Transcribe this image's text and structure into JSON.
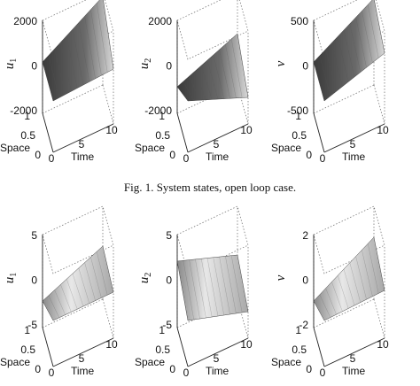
{
  "figures": [
    {
      "panels": [
        {
          "zlabel": {
            "base": "u",
            "sub": "1"
          },
          "zticks": [
            2000,
            0,
            -2000
          ],
          "space_label": "Space",
          "space_ticks": [
            1,
            0.5,
            0
          ],
          "time_label": "Time",
          "time_ticks": [
            0,
            5,
            10
          ]
        },
        {
          "zlabel": {
            "base": "u",
            "sub": "2"
          },
          "zticks": [
            2000,
            0,
            -2000
          ],
          "space_label": "Space",
          "space_ticks": [
            1,
            0.5,
            0
          ],
          "time_label": "Time",
          "time_ticks": [
            0,
            5,
            10
          ]
        },
        {
          "zlabel": {
            "base": "v"
          },
          "zticks": [
            500,
            0,
            -500
          ],
          "space_label": "Space",
          "space_ticks": [
            1,
            0.5,
            0
          ],
          "time_label": "Time",
          "time_ticks": [
            0,
            5,
            10
          ]
        }
      ],
      "caption": "Fig. 1.   System states, open loop case."
    },
    {
      "panels": [
        {
          "zlabel": {
            "base": "u",
            "sub": "1"
          },
          "zticks": [
            5,
            0,
            -5
          ],
          "space_label": "Space",
          "space_ticks": [
            1,
            0.5,
            0
          ],
          "time_label": "Time",
          "time_ticks": [
            0,
            5,
            10
          ]
        },
        {
          "zlabel": {
            "base": "u",
            "sub": "2"
          },
          "zticks": [
            5,
            0,
            -5
          ],
          "space_label": "Space",
          "space_ticks": [
            1,
            0.5,
            0
          ],
          "time_label": "Time",
          "time_ticks": [
            0,
            5,
            10
          ]
        },
        {
          "zlabel": {
            "base": "v"
          },
          "zticks": [
            2,
            0,
            -2
          ],
          "space_label": "Space",
          "space_ticks": [
            1,
            0.5,
            0
          ],
          "time_label": "Time",
          "time_ticks": [
            0,
            5,
            10
          ]
        }
      ]
    }
  ]
}
